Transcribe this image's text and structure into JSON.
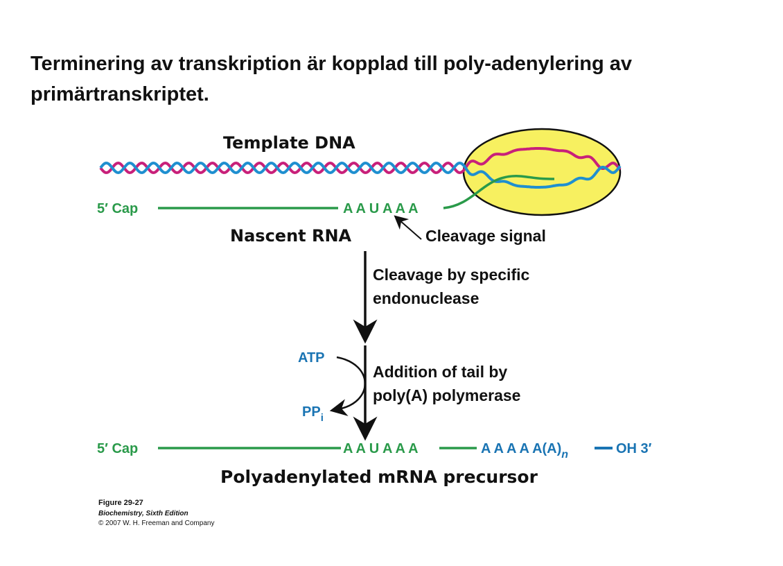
{
  "title": "Terminering av transkription är kopplad till poly-adenylering av primärtranskriptet.",
  "diagram": {
    "template_dna_label": "Template DNA",
    "nascent_rna_label": "Nascent RNA",
    "five_prime_cap": "5′ Cap",
    "cleavage_signal_seq": "A A U A A A",
    "cleavage_signal_label": "Cleavage signal",
    "step1_line1": "Cleavage by specific",
    "step1_line2": "endonuclease",
    "atp": "ATP",
    "ppi": "PP",
    "ppi_sub": "i",
    "step2_line1": "Addition of tail by",
    "step2_line2": "poly(A) polymerase",
    "poly_a_tail": "A A A A A(A)",
    "poly_a_sub": "n",
    "oh3": "OH 3′",
    "product_label": "Polyadenylated mRNA precursor"
  },
  "caption": {
    "figure": "Figure 29-27",
    "book": "Biochemistry, Sixth Edition",
    "copyright": "© 2007 W. H. Freeman and Company"
  },
  "colors": {
    "rna_green": "#2a9a4a",
    "tail_blue": "#1a74b3",
    "dna_magenta": "#c8207a",
    "dna_blue": "#1f8fd0",
    "polymerase_yellow": "#f7f060"
  }
}
